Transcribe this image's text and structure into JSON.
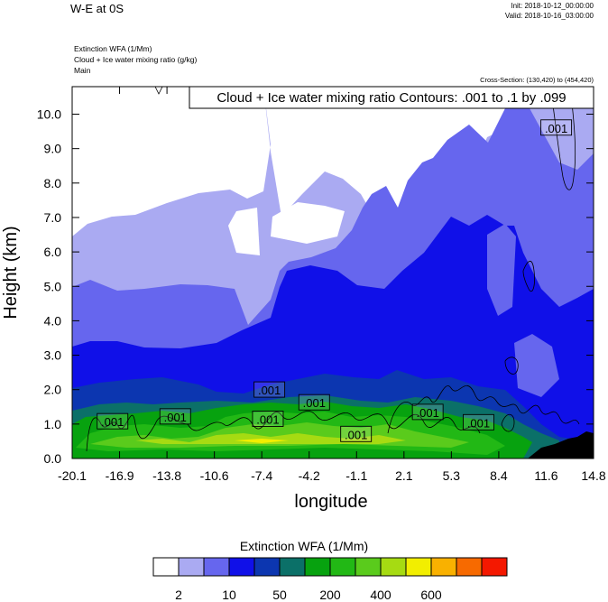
{
  "header": {
    "title": "W-E at 0S",
    "init": "Init: 2018-10-12_00:00:00",
    "valid": "Valid: 2018-10-16_03:00:00",
    "field1": "Extinction WFA   (1/Mm)",
    "field2": "Cloud + Ice water mixing ratio   (g/kg)",
    "field3": "Main",
    "cross_section": "Cross-Section: (130,420) to (454,420)"
  },
  "chart_data": {
    "type": "heatmap",
    "title": "W-E at 0S",
    "xlabel": "longitude",
    "ylabel": "Height (km)",
    "x_ticks": [
      "-20.1",
      "-16.9",
      "-13.8",
      "-10.6",
      "-7.4",
      "-4.2",
      "-1.1",
      "2.1",
      "5.3",
      "8.4",
      "11.6",
      "14.8"
    ],
    "xlim": [
      -20.1,
      14.8
    ],
    "y_ticks": [
      "0.0",
      "1.0",
      "2.0",
      "3.0",
      "4.0",
      "5.0",
      "6.0",
      "7.0",
      "8.0",
      "9.0",
      "10.0"
    ],
    "ylim": [
      0,
      10.8
    ],
    "contour_annotation": "Cloud + Ice water mixing ratio Contours: .001 to .1 by .099",
    "contour_labels": [
      {
        "text": ".001",
        "x": -17.4,
        "y": 1.07
      },
      {
        "text": ".001",
        "x": -13.2,
        "y": 1.21
      },
      {
        "text": ".001",
        "x": -6.9,
        "y": 1.99
      },
      {
        "text": ".001",
        "x": -7.0,
        "y": 1.14
      },
      {
        "text": ".001",
        "x": -3.9,
        "y": 1.62
      },
      {
        "text": ".001",
        "x": -1.1,
        "y": 0.7
      },
      {
        "text": ".001",
        "x": 3.7,
        "y": 1.34
      },
      {
        "text": ".001",
        "x": 7.1,
        "y": 1.04
      },
      {
        "text": ".001",
        "x": 12.3,
        "y": 9.6
      }
    ],
    "colorbar": {
      "title": "Extinction WFA  (1/Mm)",
      "colors": [
        "#ffffff",
        "#aaaaf2",
        "#6666ee",
        "#1010e8",
        "#0c36b0",
        "#0b7068",
        "#07a20f",
        "#22b815",
        "#5acb1c",
        "#a6db12",
        "#f2ee00",
        "#f9b100",
        "#f76a00",
        "#f41800"
      ],
      "labels": [
        "2",
        "10",
        "50",
        "200",
        "400",
        "600"
      ]
    },
    "grid": false,
    "legend": "bottom"
  }
}
